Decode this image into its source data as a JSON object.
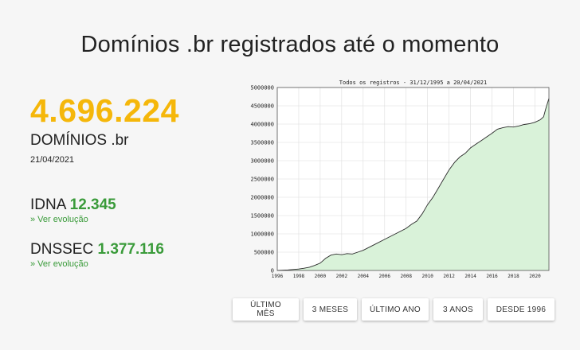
{
  "page": {
    "title": "Domínios .br registrados até o momento",
    "total": "4.696.224",
    "total_label": "DOMÍNIOS .br",
    "date": "21/04/2021"
  },
  "idna": {
    "label": "IDNA",
    "value": "12.345",
    "link": "» Ver evolução"
  },
  "dnssec": {
    "label": "DNSSEC",
    "value": "1.377.116",
    "link": "» Ver evolução"
  },
  "buttons": [
    "ÚLTIMO MÊS",
    "3 MESES",
    "ÚLTIMO ANO",
    "3 ANOS",
    "DESDE 1996"
  ],
  "colors": {
    "accent": "#f5b70a",
    "green": "#3a9b3a",
    "area_fill": "#d9f2d9",
    "line": "#2a2a2a"
  },
  "chart_data": {
    "type": "area",
    "title": "Todos os registros - 31/12/1995 a 20/04/2021",
    "xlim": [
      1996,
      2021.3
    ],
    "ylim": [
      0,
      5000000
    ],
    "xticks": [
      1996,
      1998,
      2000,
      2002,
      2004,
      2006,
      2008,
      2010,
      2012,
      2014,
      2016,
      2018,
      2020
    ],
    "yticks": [
      0,
      500000,
      1000000,
      1500000,
      2000000,
      2500000,
      3000000,
      3500000,
      4000000,
      4500000,
      5000000
    ],
    "grid": true,
    "series": [
      {
        "x": [
          1996,
          1997,
          1998,
          1998.5,
          1999,
          1999.5,
          2000,
          2000.5,
          2001,
          2001.5,
          2002,
          2002.5,
          2003,
          2003.5,
          2004,
          2005,
          2006,
          2007,
          2008,
          2008.5,
          2009,
          2009.5,
          2010,
          2010.5,
          2011,
          2011.5,
          2012,
          2012.5,
          2013,
          2013.5,
          2014,
          2014.5,
          2015,
          2015.5,
          2016,
          2016.5,
          2017,
          2017.5,
          2018,
          2018.5,
          2019,
          2019.5,
          2020,
          2020.5,
          2020.8,
          2021,
          2021.3
        ],
        "y": [
          0,
          15000,
          40000,
          60000,
          90000,
          140000,
          200000,
          330000,
          420000,
          450000,
          430000,
          460000,
          450000,
          500000,
          550000,
          700000,
          850000,
          1000000,
          1150000,
          1260000,
          1350000,
          1550000,
          1800000,
          2000000,
          2250000,
          2500000,
          2750000,
          2950000,
          3100000,
          3200000,
          3350000,
          3450000,
          3550000,
          3650000,
          3750000,
          3860000,
          3900000,
          3930000,
          3920000,
          3950000,
          3990000,
          4010000,
          4050000,
          4120000,
          4200000,
          4420000,
          4700000
        ]
      }
    ]
  }
}
